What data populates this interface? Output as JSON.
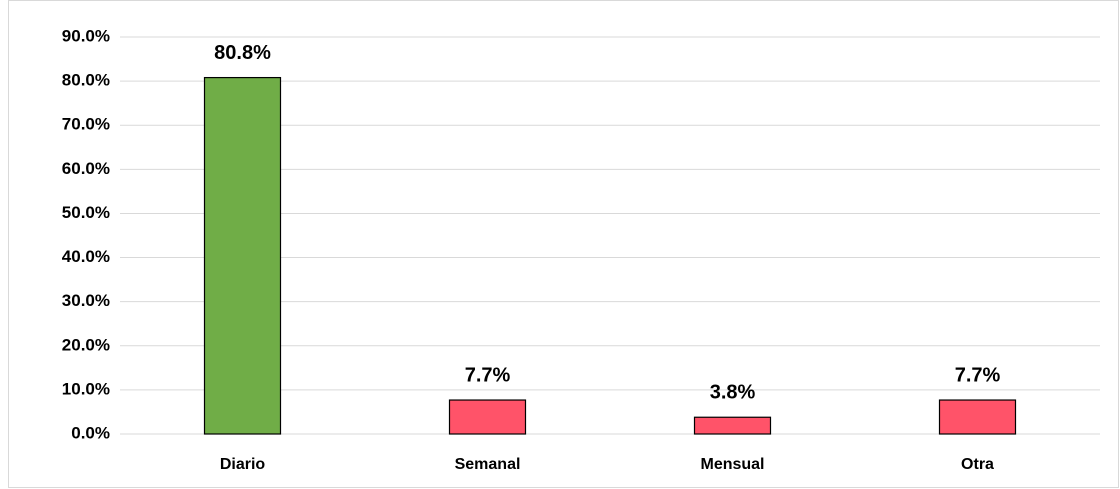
{
  "chart_data": {
    "type": "bar",
    "categories": [
      "Diario",
      "Semanal",
      "Mensual",
      "Otra"
    ],
    "values": [
      80.8,
      7.7,
      3.8,
      7.7
    ],
    "value_labels": [
      "80.8%",
      "7.7%",
      "3.8%",
      "7.7%"
    ],
    "colors": [
      "#70ad47",
      "#ff5369",
      "#ff5369",
      "#ff5369"
    ],
    "ylim": [
      0,
      90
    ],
    "yticks": [
      {
        "value": 0,
        "label": "0.0%"
      },
      {
        "value": 10,
        "label": "10.0%"
      },
      {
        "value": 20,
        "label": "20.0%"
      },
      {
        "value": 30,
        "label": "30.0%"
      },
      {
        "value": 40,
        "label": "40.0%"
      },
      {
        "value": 50,
        "label": "50.0%"
      },
      {
        "value": 60,
        "label": "60.0%"
      },
      {
        "value": 70,
        "label": "70.0%"
      },
      {
        "value": 80,
        "label": "80.0%"
      },
      {
        "value": 90,
        "label": "90.0%"
      }
    ],
    "grid": true
  }
}
